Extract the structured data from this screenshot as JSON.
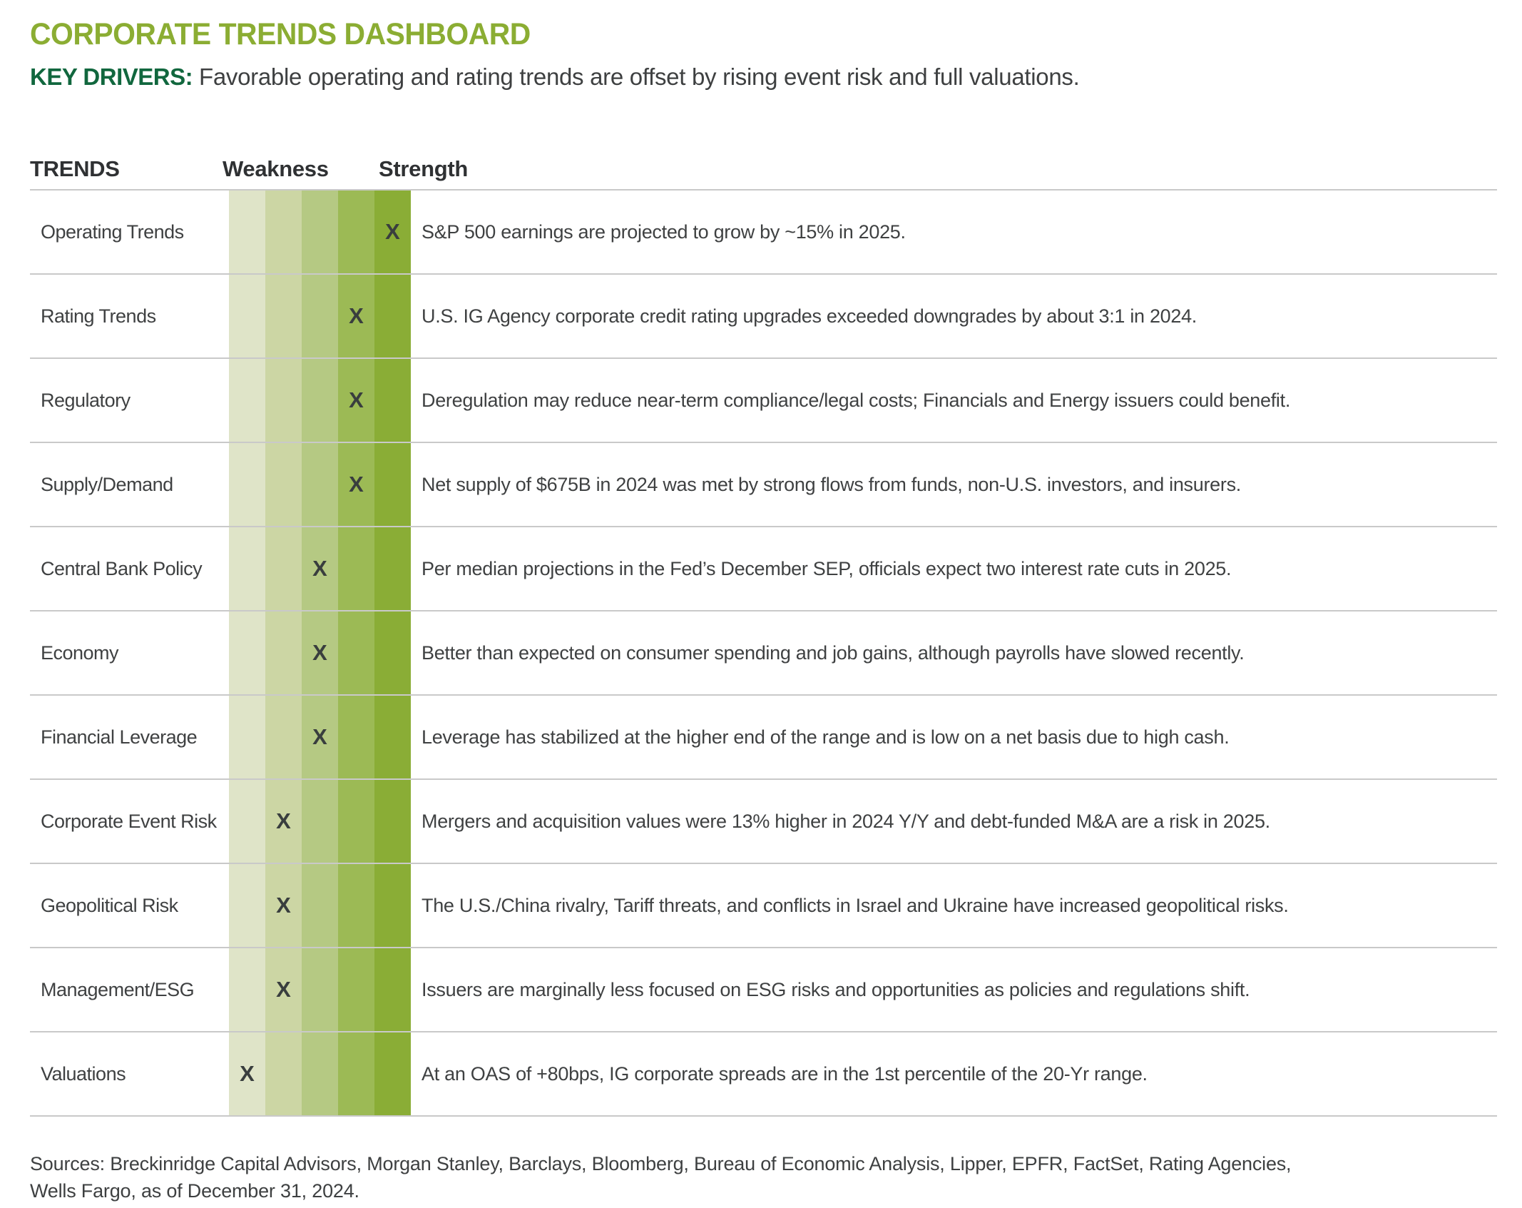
{
  "page": {
    "title": "CORPORATE TRENDS DASHBOARD",
    "subtitle_label": "KEY DRIVERS:",
    "subtitle_text": "Favorable operating and rating trends are offset by rising event risk and full valuations."
  },
  "table": {
    "header": {
      "trends": "TRENDS",
      "weakness": "Weakness",
      "strength": "Strength"
    },
    "marker": "X",
    "scale_colors": [
      "#dfe4c8",
      "#ccd6a4",
      "#b5c983",
      "#9cba55",
      "#8aad36"
    ]
  },
  "chart_data": {
    "type": "heatmap-table",
    "title": "CORPORATE TRENDS DASHBOARD",
    "scale": {
      "levels": 5,
      "low_label": "Weakness",
      "high_label": "Strength"
    },
    "rows": [
      {
        "label": "Operating Trends",
        "rating": 5,
        "description": "S&P 500 earnings are projected to grow by ~15% in 2025."
      },
      {
        "label": "Rating Trends",
        "rating": 4,
        "description": "U.S. IG Agency corporate credit rating upgrades exceeded downgrades by about 3:1 in 2024."
      },
      {
        "label": "Regulatory",
        "rating": 4,
        "description": "Deregulation may reduce near-term compliance/legal costs; Financials and Energy issuers could benefit."
      },
      {
        "label": "Supply/Demand",
        "rating": 4,
        "description": "Net supply of $675B in 2024 was met by strong flows from funds, non-U.S. investors, and insurers."
      },
      {
        "label": "Central Bank Policy",
        "rating": 3,
        "description": "Per median projections in the Fed’s December SEP, officials expect two interest rate cuts in 2025."
      },
      {
        "label": "Economy",
        "rating": 3,
        "description": "Better than expected on consumer spending and job gains, although payrolls have slowed recently."
      },
      {
        "label": "Financial Leverage",
        "rating": 3,
        "description": "Leverage has stabilized at the higher end of the range and is low on a net basis due to high cash."
      },
      {
        "label": "Corporate Event Risk",
        "rating": 2,
        "description": "Mergers and acquisition values were 13% higher in 2024 Y/Y and debt-funded M&A are a risk in 2025."
      },
      {
        "label": "Geopolitical Risk",
        "rating": 2,
        "description": "The U.S./China rivalry, Tariff threats, and conflicts in Israel and Ukraine have increased geopolitical risks."
      },
      {
        "label": "Management/ESG",
        "rating": 2,
        "description": "Issuers are marginally less focused on ESG risks and opportunities as policies and regulations shift."
      },
      {
        "label": "Valuations",
        "rating": 1,
        "description": "At an OAS of +80bps, IG corporate spreads are in the 1st percentile of the 20-Yr range."
      }
    ]
  },
  "footer": {
    "line1": "Sources: Breckinridge Capital Advisors, Morgan Stanley, Barclays, Bloomberg, Bureau of Economic Analysis, Lipper, EPFR, FactSet, Rating Agencies,",
    "line2": "Wells Fargo, as of December 31, 2024."
  },
  "colors": {
    "title-green": "#8bad33",
    "kd-green": "#11673e",
    "marker-color": "#393e3e",
    "rule-gray": "#c9c9c9"
  }
}
